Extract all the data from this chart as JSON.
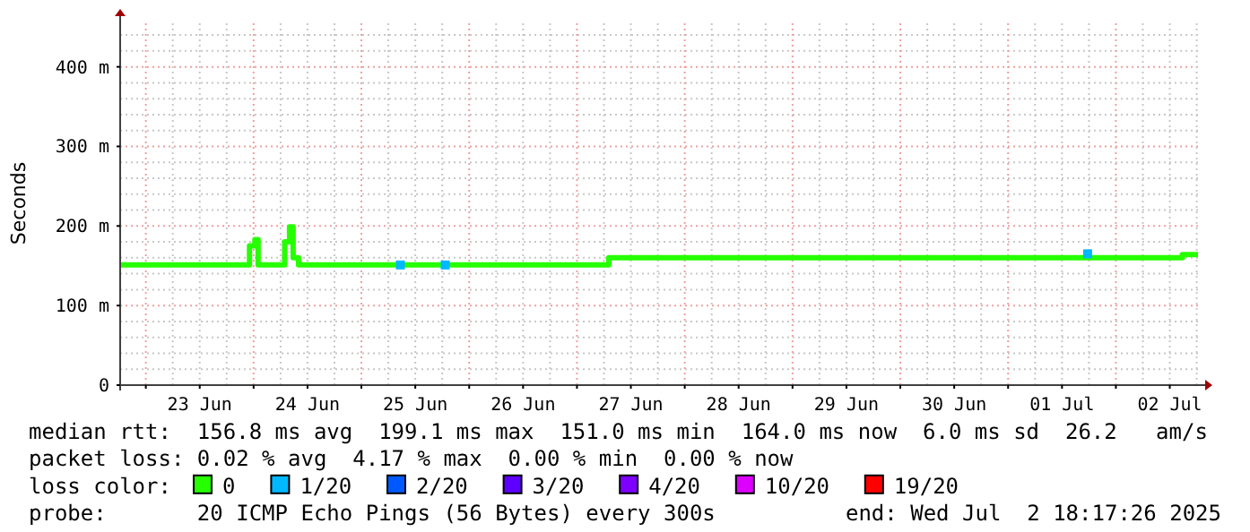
{
  "chart_data": {
    "type": "step",
    "ylabel": "Seconds",
    "xlim": [
      "2025-06-22T18:17",
      "2025-07-02T18:17"
    ],
    "xticks": [
      {
        "value": "2025-06-23T00:00",
        "label": null
      },
      {
        "value": "2025-06-23T12:00",
        "label": "23 Jun"
      },
      {
        "value": "2025-06-24T00:00",
        "label": null
      },
      {
        "value": "2025-06-24T12:00",
        "label": "24 Jun"
      },
      {
        "value": "2025-06-25T00:00",
        "label": null
      },
      {
        "value": "2025-06-25T12:00",
        "label": "25 Jun"
      },
      {
        "value": "2025-06-26T00:00",
        "label": null
      },
      {
        "value": "2025-06-26T12:00",
        "label": "26 Jun"
      },
      {
        "value": "2025-06-27T00:00",
        "label": null
      },
      {
        "value": "2025-06-27T12:00",
        "label": "27 Jun"
      },
      {
        "value": "2025-06-28T00:00",
        "label": null
      },
      {
        "value": "2025-06-28T12:00",
        "label": "28 Jun"
      },
      {
        "value": "2025-06-29T00:00",
        "label": null
      },
      {
        "value": "2025-06-29T12:00",
        "label": "29 Jun"
      },
      {
        "value": "2025-06-30T00:00",
        "label": null
      },
      {
        "value": "2025-06-30T12:00",
        "label": "30 Jun"
      },
      {
        "value": "2025-07-01T00:00",
        "label": null
      },
      {
        "value": "2025-07-01T12:00",
        "label": "01 Jul"
      },
      {
        "value": "2025-07-02T00:00",
        "label": null
      },
      {
        "value": "2025-07-02T12:00",
        "label": "02 Jul"
      }
    ],
    "ylim": [
      0,
      457
    ],
    "yticks": [
      0,
      {
        "value": 100,
        "label": "100 m"
      },
      {
        "value": 200,
        "label": "200 m"
      },
      {
        "value": 300,
        "label": "300 m"
      },
      {
        "value": 400,
        "label": "400 m"
      }
    ],
    "grid": true,
    "legend": "bottom",
    "legend_title": "loss color:",
    "series": [
      {
        "name": "0",
        "color": "#26ff00",
        "x": [
          "2025-06-22T18:17",
          "2025-06-23T23:05",
          "2025-06-24T00:17",
          "2025-06-24T01:00",
          "2025-06-24T06:55",
          "2025-06-24T08:00",
          "2025-06-24T08:48",
          "2025-06-24T10:00",
          "2025-06-27T07:05",
          "2025-07-02T14:48",
          "2025-07-02T18:17"
        ],
        "values": [
          151,
          175,
          183,
          151,
          180,
          199,
          160,
          151,
          160,
          164,
          164
        ]
      },
      {
        "name": "1/20",
        "color": "#00b8ff",
        "type": "scatter",
        "marker": "square",
        "x": [
          "2025-06-25T08:41",
          "2025-06-25T18:40",
          "2025-07-01T17:43"
        ],
        "values": [
          151,
          151,
          165
        ]
      },
      {
        "name": "2/20",
        "color": "#0059ff",
        "type": "scatter"
      },
      {
        "name": "3/20",
        "color": "#5e00ff",
        "type": "scatter"
      },
      {
        "name": "4/20",
        "color": "#7e00ff",
        "type": "scatter"
      },
      {
        "name": "10/20",
        "color": "#dd00ff",
        "type": "scatter"
      },
      {
        "name": "19/20",
        "color": "#ff0000",
        "type": "scatter"
      }
    ],
    "annotations": [
      "median rtt:  156.8 ms avg  199.1 ms max  151.0 ms min  164.0 ms now  6.0 ms sd  26.2   am/s",
      "packet loss: 0.02 % avg  4.17 % max  0.00 % min  0.00 % now",
      "probe:       20 ICMP Echo Pings (56 Bytes) every 300s",
      "end: Wed Jul  2 18:17:26 2025"
    ]
  }
}
